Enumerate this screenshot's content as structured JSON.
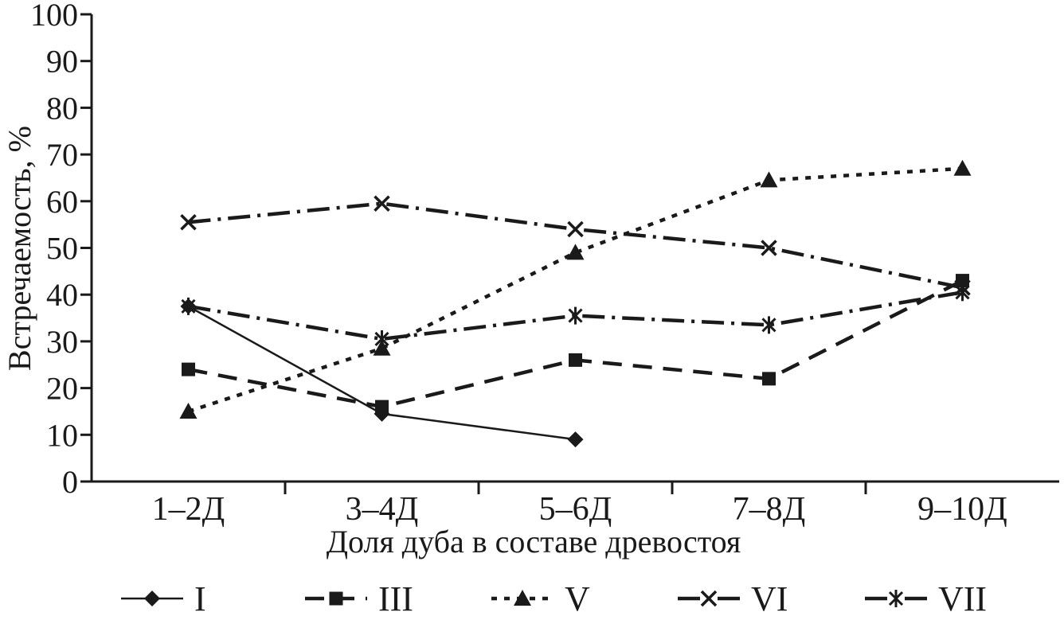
{
  "chart_data": {
    "type": "line",
    "title": "",
    "xlabel": "Доля дуба в составе древостоя",
    "ylabel": "Встречаемость, %",
    "ylim": [
      0,
      100
    ],
    "yticks": [
      0,
      10,
      20,
      30,
      40,
      50,
      60,
      70,
      80,
      90,
      100
    ],
    "categories": [
      "1–2Д",
      "3–4Д",
      "5–6Д",
      "7–8Д",
      "9–10Д"
    ],
    "grid": false,
    "legend_position": "bottom",
    "color": "#1a1a1a",
    "series": [
      {
        "name": "I",
        "marker": "diamond",
        "line": "solid",
        "stroke_width": 2.5,
        "values": [
          37.5,
          14.5,
          9,
          null,
          null
        ]
      },
      {
        "name": "III",
        "marker": "square",
        "line": "dashed",
        "stroke_width": 4.5,
        "values": [
          24,
          16,
          26,
          22,
          43
        ]
      },
      {
        "name": "V",
        "marker": "triangle",
        "line": "dotted",
        "stroke_width": 4.5,
        "values": [
          15,
          28.5,
          49,
          64.5,
          67
        ]
      },
      {
        "name": "VI",
        "marker": "x",
        "line": "dash-dot",
        "stroke_width": 4.5,
        "values": [
          55.5,
          59.5,
          54,
          50,
          41.5
        ]
      },
      {
        "name": "VII",
        "marker": "asterisk",
        "line": "dash-dot",
        "stroke_width": 4.5,
        "values": [
          37.5,
          30.5,
          35.5,
          33.5,
          40.5
        ]
      }
    ]
  }
}
